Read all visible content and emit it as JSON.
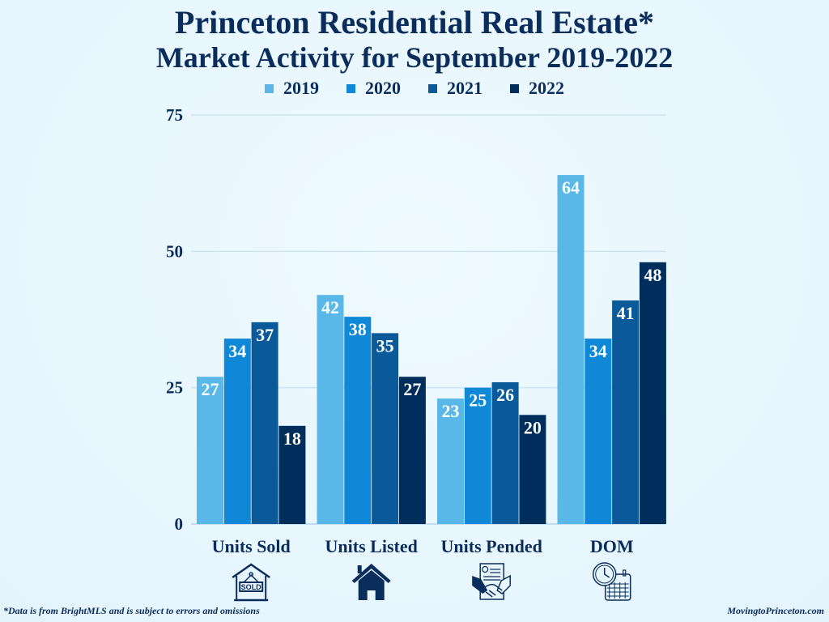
{
  "chart_data": {
    "type": "bar",
    "title": "Princeton Residential Real Estate*",
    "subtitle": "Market Activity for September 2019-2022",
    "categories": [
      "Units Sold",
      "Units Listed",
      "Units Pended",
      "DOM"
    ],
    "series": [
      {
        "name": "2019",
        "color": "#5ab8e8",
        "values": [
          27,
          42,
          23,
          64
        ]
      },
      {
        "name": "2020",
        "color": "#1088d8",
        "values": [
          34,
          38,
          25,
          34
        ]
      },
      {
        "name": "2021",
        "color": "#0a5a9a",
        "values": [
          37,
          35,
          26,
          41
        ]
      },
      {
        "name": "2022",
        "color": "#002e5c",
        "values": [
          18,
          27,
          20,
          48
        ]
      }
    ],
    "ylim": [
      0,
      75
    ],
    "yticks": [
      0,
      25,
      50,
      75
    ],
    "grid": true,
    "legend": "top-center",
    "category_icons": [
      "sold-sign-house-icon",
      "house-icon",
      "contract-handshake-icon",
      "clock-calendar-icon"
    ]
  },
  "footer": {
    "note": "*Data is from BrightMLS and is subject to errors and omissions",
    "source": "MovingtoPrinceton.com"
  }
}
